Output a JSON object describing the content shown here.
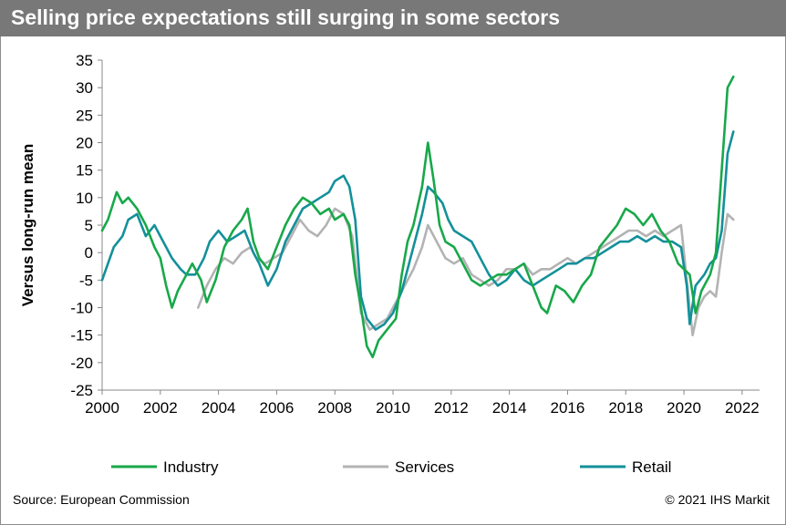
{
  "title": "Selling price expectations still surging in some sectors",
  "source": "Source: European Commission",
  "copyright": "© 2021 IHS Markit",
  "colors": {
    "industry": "#18a84a",
    "services": "#b3b3b3",
    "retail": "#13909a",
    "title_bg": "#787878"
  },
  "chart_data": {
    "type": "line",
    "title": "Selling price expectations still surging in some sectors",
    "xlabel": "",
    "ylabel": "Versus long-run mean",
    "xlim": [
      2000,
      2022.6
    ],
    "ylim": [
      -25,
      35
    ],
    "xticks": [
      2000,
      2002,
      2004,
      2006,
      2008,
      2010,
      2012,
      2014,
      2016,
      2018,
      2020,
      2022
    ],
    "yticks": [
      35,
      30,
      25,
      20,
      15,
      10,
      5,
      0,
      -5,
      -10,
      -15,
      -20,
      -25
    ],
    "grid": false,
    "legend": "bottom",
    "series": [
      {
        "name": "Industry",
        "color": "#18a84a",
        "points": [
          [
            2000.0,
            4
          ],
          [
            2000.2,
            6
          ],
          [
            2000.5,
            11
          ],
          [
            2000.7,
            9
          ],
          [
            2000.9,
            10
          ],
          [
            2001.2,
            8
          ],
          [
            2001.5,
            5
          ],
          [
            2001.8,
            1
          ],
          [
            2002.0,
            -1
          ],
          [
            2002.2,
            -6
          ],
          [
            2002.4,
            -10
          ],
          [
            2002.6,
            -7
          ],
          [
            2002.9,
            -4
          ],
          [
            2003.1,
            -2
          ],
          [
            2003.4,
            -5
          ],
          [
            2003.6,
            -9
          ],
          [
            2003.9,
            -5
          ],
          [
            2004.2,
            1
          ],
          [
            2004.5,
            4
          ],
          [
            2004.8,
            6
          ],
          [
            2005.0,
            8
          ],
          [
            2005.2,
            2
          ],
          [
            2005.4,
            -1
          ],
          [
            2005.7,
            -3
          ],
          [
            2006.0,
            1
          ],
          [
            2006.3,
            5
          ],
          [
            2006.6,
            8
          ],
          [
            2006.9,
            10
          ],
          [
            2007.2,
            9
          ],
          [
            2007.5,
            7
          ],
          [
            2007.8,
            8
          ],
          [
            2008.0,
            6
          ],
          [
            2008.3,
            7
          ],
          [
            2008.5,
            5
          ],
          [
            2008.7,
            -4
          ],
          [
            2008.9,
            -10
          ],
          [
            2009.1,
            -17
          ],
          [
            2009.3,
            -19
          ],
          [
            2009.5,
            -16
          ],
          [
            2009.8,
            -14
          ],
          [
            2010.1,
            -12
          ],
          [
            2010.3,
            -4
          ],
          [
            2010.5,
            2
          ],
          [
            2010.7,
            5
          ],
          [
            2011.0,
            12
          ],
          [
            2011.2,
            20
          ],
          [
            2011.4,
            13
          ],
          [
            2011.6,
            5
          ],
          [
            2011.8,
            2
          ],
          [
            2012.1,
            1
          ],
          [
            2012.4,
            -2
          ],
          [
            2012.7,
            -5
          ],
          [
            2013.0,
            -6
          ],
          [
            2013.3,
            -5
          ],
          [
            2013.6,
            -4
          ],
          [
            2013.9,
            -4
          ],
          [
            2014.2,
            -3
          ],
          [
            2014.5,
            -2
          ],
          [
            2014.8,
            -6
          ],
          [
            2015.1,
            -10
          ],
          [
            2015.3,
            -11
          ],
          [
            2015.6,
            -6
          ],
          [
            2015.9,
            -7
          ],
          [
            2016.2,
            -9
          ],
          [
            2016.5,
            -6
          ],
          [
            2016.8,
            -4
          ],
          [
            2017.1,
            1
          ],
          [
            2017.4,
            3
          ],
          [
            2017.7,
            5
          ],
          [
            2018.0,
            8
          ],
          [
            2018.3,
            7
          ],
          [
            2018.6,
            5
          ],
          [
            2018.9,
            7
          ],
          [
            2019.2,
            4
          ],
          [
            2019.5,
            2
          ],
          [
            2019.8,
            -2
          ],
          [
            2020.0,
            -3
          ],
          [
            2020.2,
            -4
          ],
          [
            2020.4,
            -11
          ],
          [
            2020.6,
            -7
          ],
          [
            2020.9,
            -4
          ],
          [
            2021.1,
            0
          ],
          [
            2021.3,
            15
          ],
          [
            2021.5,
            30
          ],
          [
            2021.7,
            32
          ]
        ]
      },
      {
        "name": "Services",
        "color": "#b3b3b3",
        "points": [
          [
            2003.3,
            -10
          ],
          [
            2003.6,
            -6
          ],
          [
            2003.9,
            -3
          ],
          [
            2004.2,
            -1
          ],
          [
            2004.5,
            -2
          ],
          [
            2004.8,
            0
          ],
          [
            2005.1,
            1
          ],
          [
            2005.3,
            -1
          ],
          [
            2005.6,
            -2
          ],
          [
            2005.9,
            -1
          ],
          [
            2006.2,
            0
          ],
          [
            2006.5,
            3
          ],
          [
            2006.8,
            6
          ],
          [
            2007.1,
            4
          ],
          [
            2007.4,
            3
          ],
          [
            2007.7,
            5
          ],
          [
            2008.0,
            8
          ],
          [
            2008.3,
            7
          ],
          [
            2008.6,
            3
          ],
          [
            2008.9,
            -11
          ],
          [
            2009.2,
            -14
          ],
          [
            2009.5,
            -13
          ],
          [
            2009.8,
            -12
          ],
          [
            2010.1,
            -9
          ],
          [
            2010.4,
            -6
          ],
          [
            2010.7,
            -3
          ],
          [
            2011.0,
            1
          ],
          [
            2011.2,
            5
          ],
          [
            2011.5,
            2
          ],
          [
            2011.8,
            -1
          ],
          [
            2012.1,
            -2
          ],
          [
            2012.4,
            -1
          ],
          [
            2012.7,
            -4
          ],
          [
            2013.0,
            -5
          ],
          [
            2013.3,
            -6
          ],
          [
            2013.6,
            -5
          ],
          [
            2013.9,
            -3
          ],
          [
            2014.2,
            -3
          ],
          [
            2014.5,
            -2
          ],
          [
            2014.8,
            -4
          ],
          [
            2015.1,
            -3
          ],
          [
            2015.4,
            -3
          ],
          [
            2015.7,
            -2
          ],
          [
            2016.0,
            -1
          ],
          [
            2016.3,
            -2
          ],
          [
            2016.6,
            -1
          ],
          [
            2016.9,
            0
          ],
          [
            2017.2,
            1
          ],
          [
            2017.5,
            2
          ],
          [
            2017.8,
            3
          ],
          [
            2018.1,
            4
          ],
          [
            2018.4,
            4
          ],
          [
            2018.7,
            3
          ],
          [
            2019.0,
            4
          ],
          [
            2019.3,
            3
          ],
          [
            2019.6,
            4
          ],
          [
            2019.9,
            5
          ],
          [
            2020.1,
            -5
          ],
          [
            2020.3,
            -15
          ],
          [
            2020.5,
            -10
          ],
          [
            2020.7,
            -8
          ],
          [
            2020.9,
            -7
          ],
          [
            2021.1,
            -8
          ],
          [
            2021.3,
            0
          ],
          [
            2021.5,
            7
          ],
          [
            2021.7,
            6
          ]
        ]
      },
      {
        "name": "Retail",
        "color": "#13909a",
        "points": [
          [
            2000.0,
            -5
          ],
          [
            2000.2,
            -2
          ],
          [
            2000.4,
            1
          ],
          [
            2000.7,
            3
          ],
          [
            2000.9,
            6
          ],
          [
            2001.2,
            7
          ],
          [
            2001.5,
            3
          ],
          [
            2001.8,
            5
          ],
          [
            2002.0,
            3
          ],
          [
            2002.2,
            1
          ],
          [
            2002.4,
            -1
          ],
          [
            2002.7,
            -3
          ],
          [
            2002.9,
            -4
          ],
          [
            2003.2,
            -4
          ],
          [
            2003.5,
            -1
          ],
          [
            2003.7,
            2
          ],
          [
            2004.0,
            4
          ],
          [
            2004.3,
            2
          ],
          [
            2004.6,
            3
          ],
          [
            2004.9,
            4
          ],
          [
            2005.2,
            0
          ],
          [
            2005.4,
            -2
          ],
          [
            2005.7,
            -6
          ],
          [
            2006.0,
            -3
          ],
          [
            2006.3,
            2
          ],
          [
            2006.6,
            5
          ],
          [
            2006.9,
            8
          ],
          [
            2007.2,
            9
          ],
          [
            2007.5,
            10
          ],
          [
            2007.8,
            11
          ],
          [
            2008.0,
            13
          ],
          [
            2008.3,
            14
          ],
          [
            2008.5,
            12
          ],
          [
            2008.7,
            6
          ],
          [
            2008.9,
            -8
          ],
          [
            2009.1,
            -12
          ],
          [
            2009.4,
            -14
          ],
          [
            2009.7,
            -13
          ],
          [
            2010.0,
            -11
          ],
          [
            2010.3,
            -7
          ],
          [
            2010.5,
            -3
          ],
          [
            2010.8,
            3
          ],
          [
            2011.0,
            7
          ],
          [
            2011.2,
            12
          ],
          [
            2011.4,
            11
          ],
          [
            2011.7,
            9
          ],
          [
            2011.9,
            6
          ],
          [
            2012.1,
            4
          ],
          [
            2012.4,
            3
          ],
          [
            2012.7,
            2
          ],
          [
            2013.0,
            -1
          ],
          [
            2013.3,
            -4
          ],
          [
            2013.6,
            -6
          ],
          [
            2013.9,
            -5
          ],
          [
            2014.2,
            -3
          ],
          [
            2014.5,
            -5
          ],
          [
            2014.8,
            -6
          ],
          [
            2015.1,
            -5
          ],
          [
            2015.4,
            -4
          ],
          [
            2015.7,
            -3
          ],
          [
            2016.0,
            -2
          ],
          [
            2016.3,
            -2
          ],
          [
            2016.6,
            -1
          ],
          [
            2016.9,
            -1
          ],
          [
            2017.2,
            0
          ],
          [
            2017.5,
            1
          ],
          [
            2017.8,
            2
          ],
          [
            2018.1,
            2
          ],
          [
            2018.4,
            3
          ],
          [
            2018.7,
            2
          ],
          [
            2019.0,
            3
          ],
          [
            2019.3,
            2
          ],
          [
            2019.6,
            2
          ],
          [
            2019.9,
            1
          ],
          [
            2020.1,
            -6
          ],
          [
            2020.2,
            -13
          ],
          [
            2020.4,
            -6
          ],
          [
            2020.7,
            -4
          ],
          [
            2020.9,
            -2
          ],
          [
            2021.1,
            -1
          ],
          [
            2021.3,
            4
          ],
          [
            2021.5,
            18
          ],
          [
            2021.7,
            22
          ]
        ]
      }
    ]
  }
}
